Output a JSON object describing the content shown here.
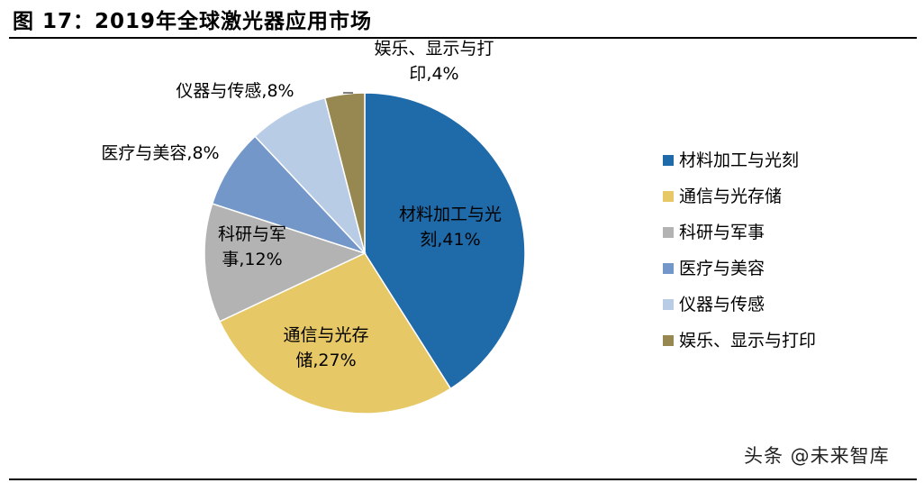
{
  "title": "图 17：2019年全球激光器应用市场",
  "watermark": "头条 @未来智库",
  "chart_data": {
    "type": "pie",
    "title": "",
    "categories": [
      "材料加工与光刻",
      "通信与光存储",
      "科研与军事",
      "医疗与美容",
      "仪器与传感",
      "娱乐、显示与打印"
    ],
    "values": [
      41,
      27,
      12,
      8,
      8,
      4
    ],
    "unit": "%",
    "colors": [
      "#1f6aa8",
      "#e7c866",
      "#b3b3b3",
      "#7497c9",
      "#b9cce6",
      "#978852"
    ],
    "data_labels": [
      [
        "材料加工与光",
        "刻,41%"
      ],
      [
        "通信与光存",
        "储,27%"
      ],
      [
        "科研与军",
        "事,12%"
      ],
      [
        "医疗与美容,8%"
      ],
      [
        "仪器与传感,8%"
      ],
      [
        "娱乐、显示与打",
        "印,4%"
      ]
    ],
    "legend": {
      "position": "right",
      "entries": [
        "材料加工与光刻",
        "通信与光存储",
        "科研与军事",
        "医疗与美容",
        "仪器与传感",
        "娱乐、显示与打印"
      ]
    }
  }
}
